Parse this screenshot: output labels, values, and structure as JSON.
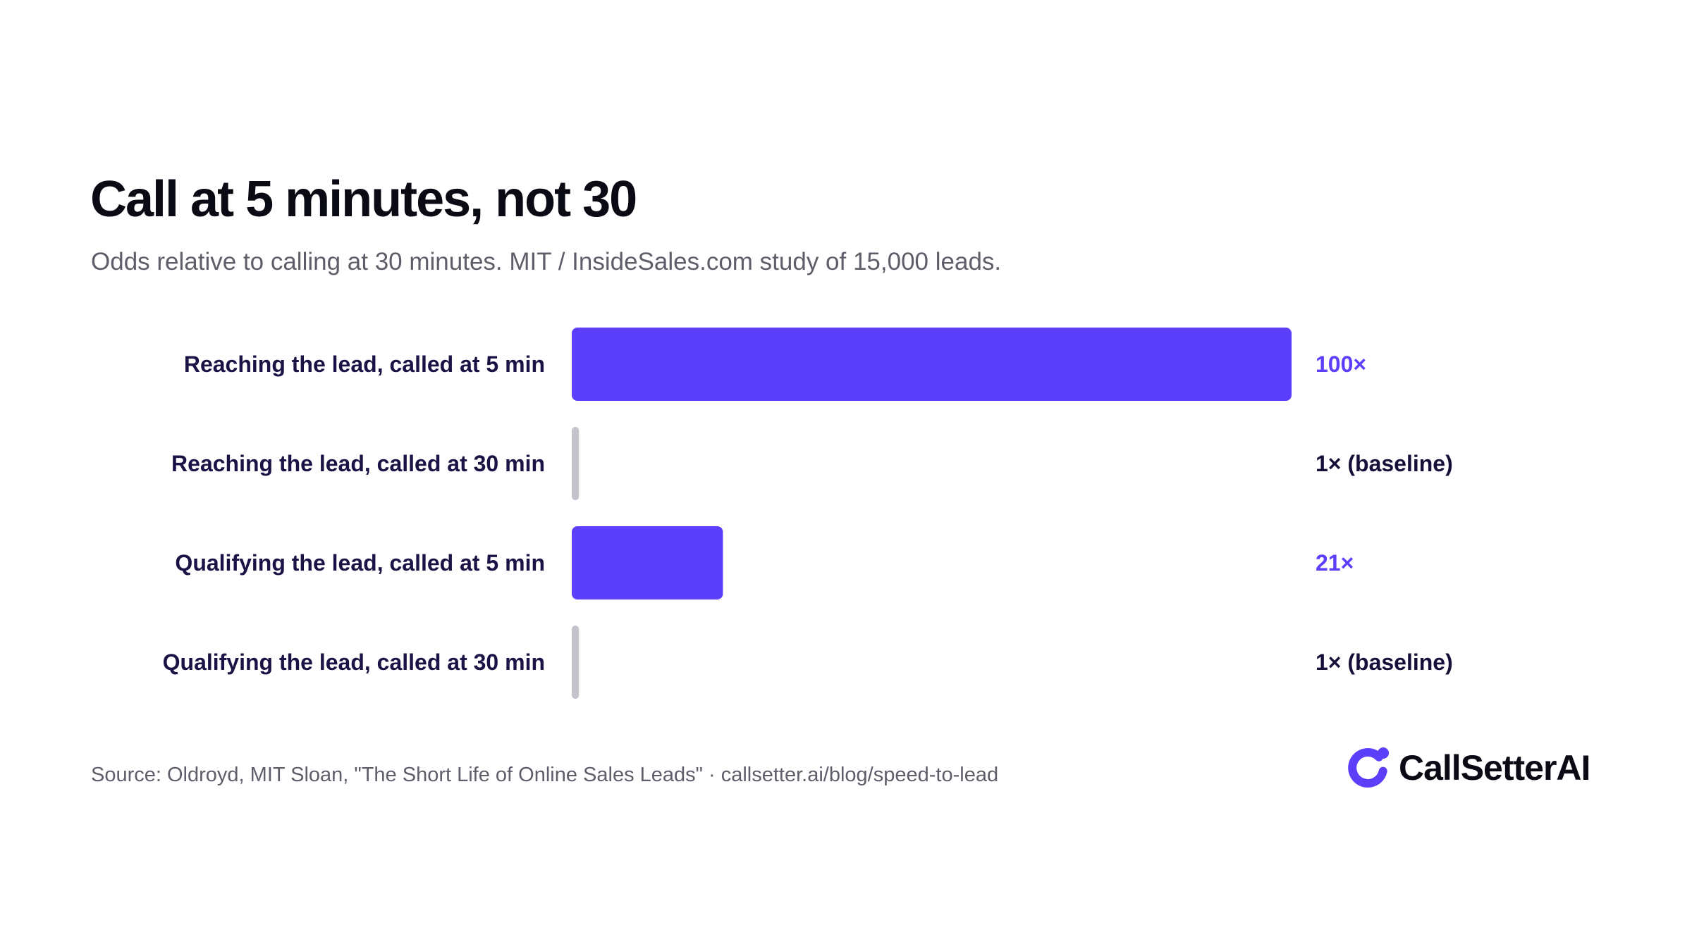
{
  "header": {
    "title": "Call at 5 minutes, not 30",
    "subtitle": "Odds relative to calling at 30 minutes. MIT / InsideSales.com study of 15,000 leads."
  },
  "chart_data": {
    "type": "bar",
    "orientation": "horizontal",
    "title": "Call at 5 minutes, not 30",
    "subtitle": "Odds relative to calling at 30 minutes. MIT / InsideSales.com study of 15,000 leads.",
    "categories": [
      "Reaching the lead, called at 5 min",
      "Reaching the lead, called at 30 min",
      "Qualifying the lead, called at 5 min",
      "Qualifying the lead, called at 30 min"
    ],
    "values": [
      100,
      1,
      21,
      1
    ],
    "value_labels": [
      "100×",
      "1× (baseline)",
      "21×",
      "1× (baseline)"
    ],
    "xlim": [
      0,
      100
    ],
    "grid": false,
    "legend": "none",
    "colors": {
      "highlight": "#5b3ffb",
      "baseline": "#c3c3cc",
      "highlight_label": "#5b3ffb",
      "baseline_label": "#14103a"
    },
    "bar_kinds": [
      "highlight",
      "baseline",
      "highlight",
      "baseline"
    ]
  },
  "footer": {
    "source": "Source: Oldroyd, MIT Sloan, \"The Short Life of Online Sales Leads\" · callsetter.ai/blog/speed-to-lead"
  },
  "brand": {
    "name": "CallSetterAI",
    "icon": "callsetter-logo-icon",
    "color": "#5b3ffb"
  }
}
